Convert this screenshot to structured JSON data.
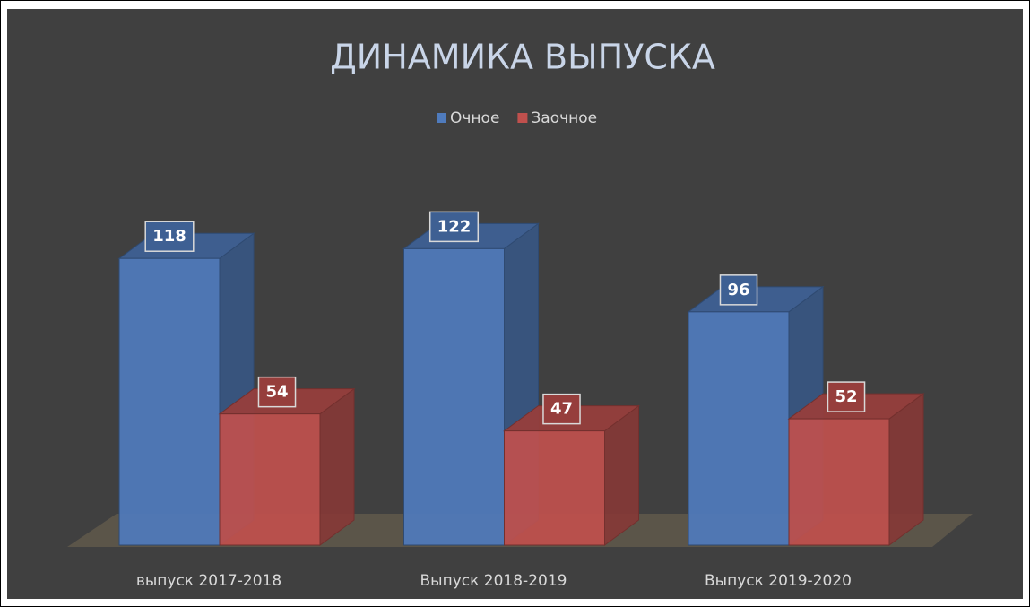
{
  "chart_data": {
    "type": "bar3d",
    "title": "ДИНАМИКА ВЫПУСКА",
    "categories": [
      "выпуск 2017-2018",
      "Выпуск 2018-2019",
      "Выпуск 2019-2020"
    ],
    "series": [
      {
        "name": "Очное",
        "color": "#4f7bbd",
        "values": [
          118,
          122,
          96
        ]
      },
      {
        "name": "Заочное",
        "color": "#c0504d",
        "values": [
          54,
          47,
          52
        ]
      }
    ],
    "legend": "top"
  }
}
